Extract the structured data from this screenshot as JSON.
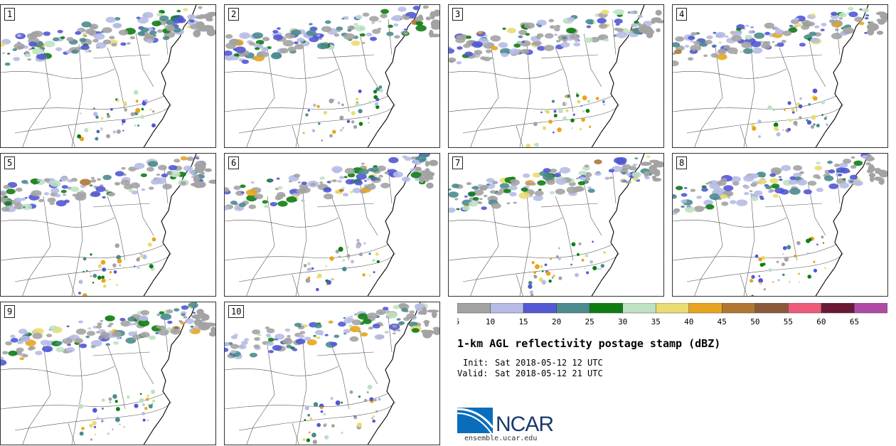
{
  "figure": {
    "title": "1-km AGL reflectivity postage stamp (dBZ)",
    "init_label": "Init:",
    "init_value": "Sat 2018-05-12 12 UTC",
    "valid_label": "Valid:",
    "valid_value": "Sat 2018-05-12 21 UTC"
  },
  "members": [
    "1",
    "2",
    "3",
    "4",
    "5",
    "6",
    "7",
    "8",
    "9",
    "10"
  ],
  "colorbar": {
    "ticks": [
      "5",
      "10",
      "15",
      "20",
      "25",
      "30",
      "35",
      "40",
      "45",
      "50",
      "55",
      "60",
      "65"
    ],
    "colors": [
      "#a3a3a3",
      "#b6bbe6",
      "#5258d4",
      "#4b8b8e",
      "#0e7d12",
      "#bfe2c2",
      "#eadb72",
      "#e8a41e",
      "#b07732",
      "#8b5a3a",
      "#ee5a7a",
      "#6b1736",
      "#b04aa6"
    ]
  },
  "logo": {
    "name": "NCAR",
    "url": "ensemble.ucar.edu",
    "blue": "#0a6dbb"
  }
}
